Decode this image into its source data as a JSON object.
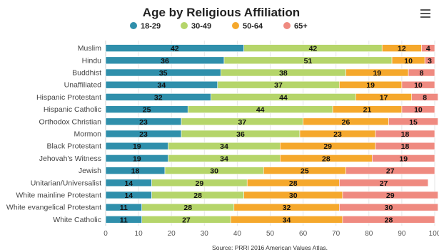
{
  "chart_data": {
    "type": "bar",
    "orientation": "horizontal",
    "stacked": true,
    "title": "Age by Religious Affiliation",
    "source": "Source: PRRI 2016 American Values Atlas.",
    "categories": [
      "Muslim",
      "Hindu",
      "Buddhist",
      "Unaffiliated",
      "Hispanic Protestant",
      "Hispanic Catholic",
      "Orthodox Christian",
      "Mormon",
      "Black Protestant",
      "Jehovah's Witness",
      "Jewish",
      "Unitarian/Universalist",
      "White mainline Protestant",
      "White evangelical Protestant",
      "White Catholic"
    ],
    "series": [
      {
        "name": "18-29",
        "color": "#2f8fab",
        "values": [
          42,
          36,
          35,
          34,
          32,
          25,
          23,
          23,
          19,
          19,
          18,
          14,
          14,
          11,
          11
        ]
      },
      {
        "name": "30-49",
        "color": "#b5d56a",
        "values": [
          42,
          51,
          38,
          37,
          44,
          44,
          37,
          36,
          34,
          34,
          30,
          29,
          28,
          28,
          27
        ]
      },
      {
        "name": "50-64",
        "color": "#f5a82c",
        "values": [
          12,
          10,
          19,
          19,
          17,
          21,
          26,
          23,
          29,
          28,
          25,
          28,
          30,
          32,
          34
        ]
      },
      {
        "name": "65+",
        "color": "#ef8a80",
        "values": [
          4,
          3,
          8,
          10,
          8,
          10,
          15,
          18,
          18,
          19,
          27,
          27,
          29,
          30,
          28
        ]
      }
    ],
    "xlim": [
      0,
      100
    ],
    "xticks": [
      "0",
      "10",
      "20",
      "30",
      "40",
      "50",
      "60",
      "70",
      "80",
      "90",
      "100"
    ],
    "legend_position": "top"
  }
}
